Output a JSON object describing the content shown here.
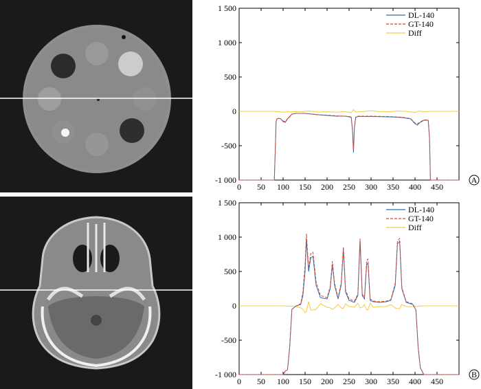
{
  "panels": [
    {
      "panel_label": "A",
      "image": {
        "kind": "ct-phantom"
      },
      "chart_data": {
        "type": "line",
        "legend": [
          "DL-140",
          "GT-140",
          "Diff"
        ],
        "legend_position": "top-right",
        "xlim": [
          0,
          500
        ],
        "ylim": [
          -1000,
          1500
        ],
        "xticks": [
          0,
          50,
          100,
          150,
          200,
          250,
          300,
          350,
          400,
          450
        ],
        "xtick_labels": [
          "0",
          "50",
          "100",
          "150",
          "200",
          "250",
          "300",
          "350",
          "400",
          "450"
        ],
        "yticks": [
          -1000,
          -500,
          0,
          500,
          1000,
          1500
        ],
        "ytick_labels": [
          "-1 000",
          "-500",
          "0",
          "500",
          "1 000",
          "1 500"
        ],
        "series": [
          {
            "name": "DL-140",
            "color": "#1f6fb4",
            "dash": "solid",
            "x": [
              0,
              80,
              82,
              84,
              86,
              90,
              95,
              100,
              105,
              110,
              115,
              120,
              130,
              150,
              180,
              200,
              220,
              240,
              250,
              255,
              258,
              260,
              262,
              265,
              270,
              300,
              340,
              370,
              390,
              400,
              405,
              410,
              420,
              430,
              433,
              435,
              440,
              500
            ],
            "y": [
              -1000,
              -1000,
              -600,
              -150,
              -110,
              -100,
              -110,
              -150,
              -160,
              -110,
              -80,
              -40,
              -30,
              -30,
              -50,
              -60,
              -70,
              -70,
              -80,
              -90,
              -300,
              -600,
              -250,
              -90,
              -75,
              -75,
              -80,
              -90,
              -110,
              -180,
              -200,
              -170,
              -130,
              -130,
              -400,
              -1000,
              -1000,
              -1000
            ]
          },
          {
            "name": "GT-140",
            "color": "#e0452a",
            "dash": "dashed",
            "x": [
              0,
              80,
              82,
              84,
              86,
              90,
              95,
              100,
              105,
              110,
              115,
              120,
              130,
              150,
              180,
              200,
              220,
              240,
              250,
              255,
              258,
              260,
              262,
              265,
              270,
              300,
              340,
              370,
              390,
              400,
              405,
              410,
              420,
              430,
              433,
              435,
              440,
              500
            ],
            "y": [
              -1000,
              -1000,
              -600,
              -150,
              -110,
              -100,
              -110,
              -140,
              -150,
              -105,
              -75,
              -40,
              -30,
              -30,
              -50,
              -55,
              -65,
              -70,
              -75,
              -85,
              -280,
              -560,
              -230,
              -85,
              -70,
              -70,
              -75,
              -85,
              -105,
              -170,
              -185,
              -160,
              -125,
              -125,
              -400,
              -1000,
              -1000,
              -1000
            ]
          },
          {
            "name": "Diff",
            "color": "#f5cc3a",
            "dash": "solid",
            "x": [
              0,
              80,
              90,
              100,
              110,
              120,
              140,
              160,
              180,
              200,
              220,
              240,
              255,
              260,
              265,
              280,
              300,
              320,
              340,
              360,
              380,
              400,
              410,
              420,
              435,
              500
            ],
            "y": [
              0,
              0,
              -5,
              -12,
              -8,
              -6,
              -3,
              4,
              -10,
              -8,
              -12,
              -5,
              -20,
              25,
              -10,
              -5,
              10,
              -5,
              -8,
              5,
              -3,
              -15,
              5,
              -8,
              0,
              0
            ]
          }
        ]
      }
    },
    {
      "panel_label": "B",
      "image": {
        "kind": "ct-head-slice"
      },
      "chart_data": {
        "type": "line",
        "legend": [
          "DL-140",
          "GT-140",
          "Diff"
        ],
        "legend_position": "top-right",
        "xlim": [
          0,
          500
        ],
        "ylim": [
          -1000,
          1500
        ],
        "xticks": [
          0,
          50,
          100,
          150,
          200,
          250,
          300,
          350,
          400,
          450
        ],
        "xtick_labels": [
          "0",
          "50",
          "100",
          "150",
          "200",
          "250",
          "300",
          "350",
          "400",
          "450"
        ],
        "yticks": [
          -1000,
          -500,
          0,
          500,
          1000,
          1500
        ],
        "ytick_labels": [
          "-1 000",
          "-500",
          "0",
          "500",
          "1 000",
          "1 500"
        ],
        "series": [
          {
            "name": "DL-140",
            "color": "#1f6fb4",
            "dash": "solid",
            "x": [
              0,
              100,
              105,
              110,
              115,
              120,
              130,
              140,
              145,
              150,
              153,
              158,
              163,
              168,
              175,
              185,
              200,
              207,
              212,
              217,
              225,
              232,
              237,
              242,
              250,
              262,
              270,
              275,
              280,
              285,
              290,
              293,
              298,
              305,
              320,
              335,
              345,
              355,
              360,
              365,
              370,
              380,
              395,
              402,
              407,
              412,
              420,
              500
            ],
            "y": [
              -1000,
              -1000,
              -950,
              -930,
              -600,
              -50,
              0,
              20,
              150,
              500,
              970,
              500,
              700,
              720,
              300,
              120,
              100,
              250,
              600,
              300,
              100,
              300,
              820,
              200,
              80,
              50,
              150,
              950,
              150,
              100,
              600,
              620,
              80,
              60,
              50,
              60,
              80,
              300,
              900,
              940,
              250,
              50,
              20,
              -60,
              -600,
              -900,
              -1000,
              -1000
            ]
          },
          {
            "name": "GT-140",
            "color": "#e0452a",
            "dash": "dashed",
            "x": [
              0,
              100,
              105,
              110,
              115,
              120,
              130,
              140,
              145,
              150,
              153,
              158,
              163,
              168,
              175,
              185,
              200,
              207,
              212,
              217,
              225,
              232,
              237,
              242,
              250,
              262,
              270,
              275,
              280,
              285,
              290,
              293,
              298,
              305,
              320,
              335,
              345,
              355,
              360,
              365,
              370,
              380,
              395,
              402,
              407,
              412,
              420,
              500
            ],
            "y": [
              -1000,
              -1000,
              -950,
              -930,
              -600,
              -50,
              0,
              30,
              200,
              600,
              1050,
              550,
              760,
              780,
              350,
              150,
              120,
              280,
              650,
              330,
              120,
              330,
              860,
              230,
              100,
              70,
              170,
              980,
              170,
              120,
              660,
              680,
              100,
              70,
              60,
              70,
              90,
              330,
              940,
              980,
              270,
              60,
              30,
              -60,
              -600,
              -900,
              -1000,
              -1000
            ]
          },
          {
            "name": "Diff",
            "color": "#f5cc3a",
            "dash": "solid",
            "x": [
              0,
              100,
              120,
              130,
              140,
              145,
              150,
              153,
              158,
              163,
              168,
              175,
              185,
              200,
              207,
              212,
              217,
              225,
              232,
              237,
              242,
              250,
              262,
              270,
              275,
              280,
              285,
              290,
              293,
              298,
              305,
              320,
              335,
              345,
              355,
              360,
              365,
              370,
              380,
              395,
              420,
              500
            ],
            "y": [
              0,
              0,
              -5,
              -10,
              -30,
              -50,
              -100,
              -80,
              60,
              -60,
              -60,
              -50,
              30,
              -20,
              -30,
              -50,
              -30,
              20,
              -30,
              -40,
              30,
              -10,
              -20,
              40,
              -30,
              -20,
              20,
              -60,
              -60,
              40,
              -20,
              -10,
              -10,
              20,
              -30,
              -40,
              -40,
              20,
              -10,
              -10,
              0,
              0
            ]
          }
        ]
      }
    }
  ]
}
